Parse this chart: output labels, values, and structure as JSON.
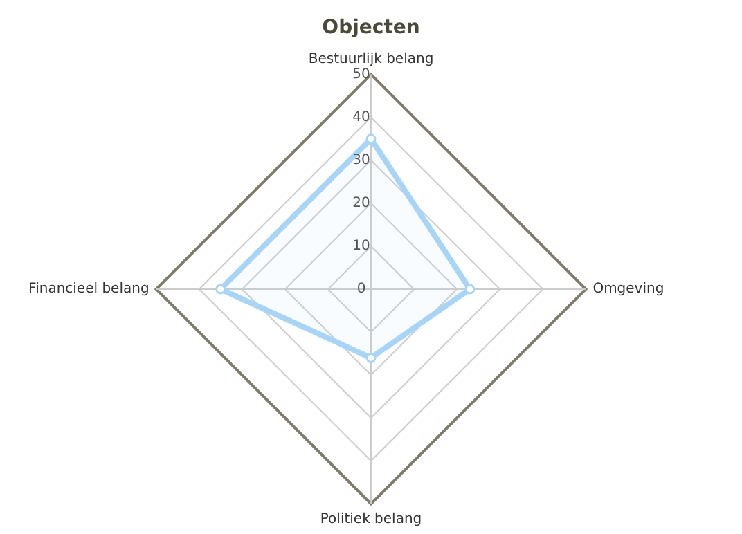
{
  "chart_data": {
    "type": "radar",
    "title": "Objecten",
    "categories": [
      "Bestuurlijk belang",
      "Omgeving",
      "Politiek belang",
      "Financieel belang"
    ],
    "series": [
      {
        "color": "#a8d4f5",
        "values": [
          35,
          23,
          16,
          35
        ]
      }
    ],
    "ylim": [
      0,
      50
    ],
    "yticks": [
      0,
      10,
      20,
      30,
      40,
      50
    ],
    "grid": true,
    "marker": "circle",
    "legend": false
  }
}
